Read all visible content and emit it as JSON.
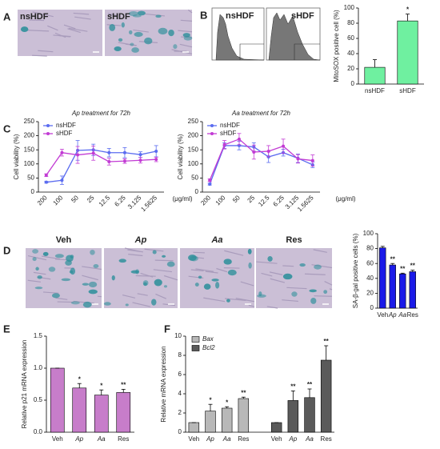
{
  "panel_labels": [
    "A",
    "B",
    "C",
    "D",
    "E",
    "F"
  ],
  "images": {
    "A": [
      "nsHDF",
      "sHDF"
    ],
    "B": [
      "nsHDF",
      "sHDF"
    ],
    "D": [
      "Veh",
      "Ap",
      "Aa",
      "Res"
    ]
  },
  "chart_data": [
    {
      "type": "bar",
      "ylabel": "MitoSOX positive cell (%)",
      "categories": [
        "nsHDF",
        "sHDF"
      ],
      "values": [
        22,
        83
      ],
      "errors": [
        10,
        9
      ],
      "annotations": [
        null,
        "*"
      ],
      "color": "#6ff0a0",
      "ylim": [
        0,
        100
      ],
      "yticks": [
        0,
        20,
        40,
        60,
        80,
        100
      ]
    },
    {
      "type": "line",
      "title": "Ap treatment for 72h",
      "ylabel": "Cell viability (%)",
      "unit": "(μg/ml)",
      "categories": [
        "200",
        "100",
        "50",
        "25",
        "12.5",
        "6.25",
        "3.125",
        "1.5625"
      ],
      "ylim": [
        0,
        250
      ],
      "yticks": [
        0,
        50,
        100,
        150,
        200,
        250
      ],
      "series": [
        {
          "name": "nsHDF",
          "color": "#5b6cf0",
          "values": [
            35,
            42,
            148,
            150,
            140,
            140,
            133,
            145
          ],
          "errors": [
            3,
            15,
            35,
            20,
            15,
            18,
            10,
            20
          ]
        },
        {
          "name": "sHDF",
          "color": "#c23bd4",
          "values": [
            60,
            140,
            132,
            138,
            108,
            110,
            113,
            116
          ],
          "errors": [
            5,
            12,
            30,
            25,
            12,
            8,
            10,
            8
          ]
        }
      ]
    },
    {
      "type": "line",
      "title": "Aa treatment for 72h",
      "ylabel": "Cell viability (%)",
      "unit": "(μg/ml)",
      "categories": [
        "200",
        "100",
        "50",
        "25",
        "12.5",
        "6.25",
        "3.125",
        "1.5625"
      ],
      "ylim": [
        0,
        250
      ],
      "yticks": [
        0,
        50,
        100,
        150,
        200,
        250
      ],
      "series": [
        {
          "name": "nsHDF",
          "color": "#5b6cf0",
          "values": [
            28,
            165,
            165,
            160,
            125,
            140,
            120,
            97
          ],
          "errors": [
            3,
            10,
            15,
            15,
            20,
            12,
            15,
            10
          ]
        },
        {
          "name": "sHDF",
          "color": "#c23bd4",
          "values": [
            42,
            168,
            188,
            142,
            145,
            163,
            118,
            112
          ],
          "errors": [
            5,
            15,
            20,
            25,
            20,
            25,
            15,
            20
          ]
        }
      ]
    },
    {
      "type": "bar",
      "ylabel": "SA-β-gal positive cells (%)",
      "categories": [
        "Veh",
        "Ap",
        "Aa",
        "Res"
      ],
      "values": [
        81,
        58,
        46,
        49
      ],
      "errors": [
        2,
        2,
        1,
        2
      ],
      "annotations": [
        null,
        "**",
        "**",
        "**"
      ],
      "color": "#1a1ae8",
      "ylim": [
        0,
        100
      ],
      "yticks": [
        0,
        20,
        40,
        60,
        80,
        100
      ]
    },
    {
      "type": "bar",
      "ylabel": "Relative p21 mRNA expression",
      "categories": [
        "Veh",
        "Ap",
        "Aa",
        "Res"
      ],
      "values": [
        1.0,
        0.69,
        0.58,
        0.62
      ],
      "errors": [
        0,
        0.07,
        0.08,
        0.05
      ],
      "annotations": [
        null,
        "*",
        "*",
        "**"
      ],
      "color": "#c77dca",
      "ylim": [
        0,
        1.5
      ],
      "yticks": [
        {
          "value": 0,
          "label": "0.0"
        },
        0.5,
        {
          "value": 1,
          "label": "1.0"
        },
        1.5
      ]
    },
    {
      "type": "bar",
      "ylabel": "Relative mRNA expression",
      "categories": [
        "Veh",
        "Ap",
        "Aa",
        "Res"
      ],
      "ylim": [
        0,
        10
      ],
      "yticks": [
        0,
        2,
        4,
        6,
        8,
        10
      ],
      "series": [
        {
          "name": "Bax",
          "color": "#b8b8b8",
          "values": [
            1,
            2.2,
            2.5,
            3.5
          ],
          "errors": [
            0,
            0.7,
            0.15,
            0.15
          ],
          "annotations": [
            null,
            "*",
            "*",
            "**"
          ]
        },
        {
          "name": "Bcl2",
          "color": "#5a5a5a",
          "values": [
            1,
            3.3,
            3.6,
            7.5
          ],
          "errors": [
            0,
            1.0,
            0.9,
            1.5
          ],
          "annotations": [
            null,
            "**",
            "**",
            "**"
          ]
        }
      ]
    }
  ]
}
